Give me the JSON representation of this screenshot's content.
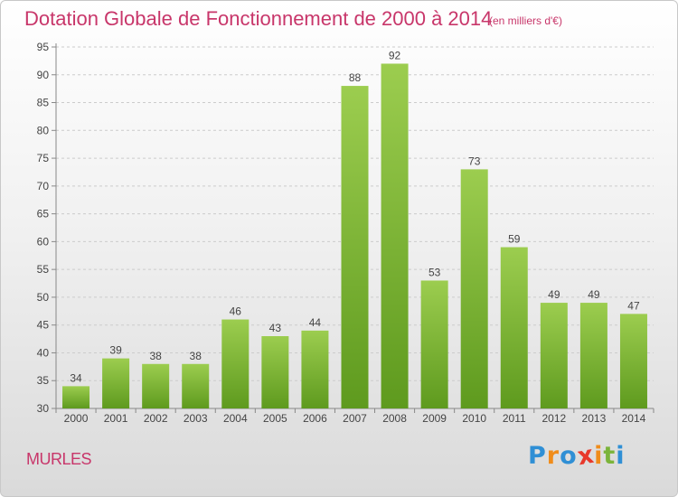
{
  "header": {
    "title": "Dotation Globale de Fonctionnement de 2000 à 2014",
    "unit": "(en milliers d'€)"
  },
  "footer": {
    "commune": "MURLES",
    "logo": {
      "letters": [
        "P",
        "r",
        "o",
        "x",
        "i",
        "t",
        "i"
      ],
      "colors": [
        "#2f8fd5",
        "#f08c1a",
        "#2f8fd5",
        "#e8382b",
        "#f08c1a",
        "#7bb43a",
        "#2f8fd5"
      ]
    }
  },
  "chart_data": {
    "type": "bar",
    "title": "Dotation Globale de Fonctionnement de 2000 à 2014",
    "categories": [
      "2000",
      "2001",
      "2002",
      "2003",
      "2004",
      "2005",
      "2006",
      "2007",
      "2008",
      "2009",
      "2010",
      "2011",
      "2012",
      "2013",
      "2014"
    ],
    "values": [
      34,
      39,
      38,
      38,
      46,
      43,
      44,
      88,
      92,
      53,
      73,
      59,
      49,
      49,
      47
    ],
    "ylim": [
      30,
      95
    ],
    "yticks": [
      30,
      35,
      40,
      45,
      50,
      55,
      60,
      65,
      70,
      75,
      80,
      85,
      90,
      95
    ],
    "grid": true,
    "colors": {
      "bar_top": "#9ccd4f",
      "bar_bottom": "#5e9a1e",
      "text": "#444444",
      "grid": "#cccccc"
    }
  }
}
